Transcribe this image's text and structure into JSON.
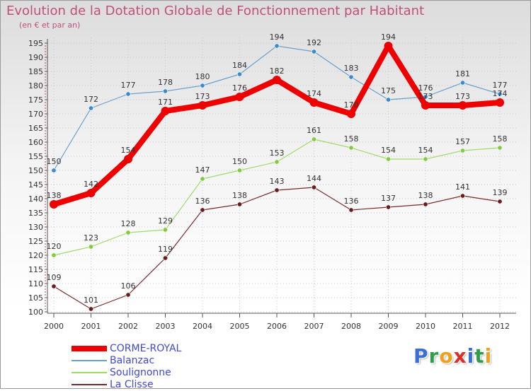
{
  "title": "Evolution de la Dotation Globale de Fonctionnement par Habitant",
  "subtitle": "(en € et par an)",
  "brand": {
    "letters": [
      "P",
      "r",
      "o",
      "x",
      "i",
      "t",
      "i"
    ],
    "colors": [
      "#3b6fd6",
      "#2f9e4a",
      "#f0a020",
      "#d8302a",
      "#3b6fd6",
      "#2f9e4a",
      "#f0a020"
    ]
  },
  "chart_data": {
    "type": "line",
    "title": "Evolution de la Dotation Globale de Fonctionnement par Habitant",
    "ylabel": "(en € et par an)",
    "xlabel": "",
    "ylim": [
      100,
      195
    ],
    "yticks": [
      100,
      105,
      110,
      115,
      120,
      125,
      130,
      135,
      140,
      145,
      150,
      155,
      160,
      165,
      170,
      175,
      180,
      185,
      190,
      195
    ],
    "categories": [
      "2000",
      "2001",
      "2002",
      "2003",
      "2004",
      "2005",
      "2006",
      "2007",
      "2008",
      "2009",
      "2010",
      "2011",
      "2012"
    ],
    "grid": true,
    "legend": "bottom-left",
    "series": [
      {
        "name": "Balanzac",
        "color": "#6aa0cc",
        "marker": "#3a8ad0",
        "values": [
          150,
          172,
          177,
          178,
          180,
          184,
          194,
          192,
          183,
          175,
          176,
          181,
          177
        ]
      },
      {
        "name": "Soulignonne",
        "color": "#9fdb6a",
        "marker": "#80cc40",
        "values": [
          120,
          123,
          128,
          129,
          147,
          150,
          153,
          161,
          158,
          154,
          154,
          157,
          158
        ]
      },
      {
        "name": "La Clisse",
        "color": "#7a2a2a",
        "marker": "#6a1c1c",
        "values": [
          109,
          101,
          106,
          119,
          136,
          138,
          143,
          144,
          136,
          137,
          138,
          141,
          139
        ]
      },
      {
        "name": "CORME-ROYAL",
        "color": "#ee0000",
        "marker": "#ee0000",
        "values": [
          138,
          142,
          154,
          171,
          173,
          176,
          182,
          174,
          170,
          194,
          173,
          173,
          174
        ]
      }
    ]
  }
}
